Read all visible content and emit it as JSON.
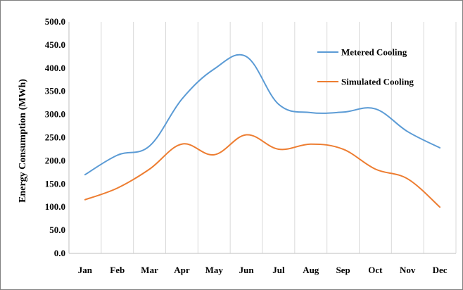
{
  "chart_data": {
    "type": "line",
    "title": "",
    "xlabel": "",
    "ylabel": "Energy Consumption  (MWh)",
    "categories": [
      "Jan",
      "Feb",
      "Mar",
      "Apr",
      "May",
      "Jun",
      "Jul",
      "Aug",
      "Sep",
      "Oct",
      "Nov",
      "Dec"
    ],
    "ylim": [
      0,
      500
    ],
    "yticks": [
      "0.0",
      "50.0",
      "100.0",
      "150.0",
      "200.0",
      "250.0",
      "300.0",
      "350.0",
      "400.0",
      "450.0",
      "500.0"
    ],
    "grid": "vertical",
    "legend_position": "top-right",
    "series": [
      {
        "name": "Metered Cooling",
        "color": "#5b9bd5",
        "values": [
          170,
          212,
          232,
          333,
          398,
          425,
          322,
          304,
          305,
          312,
          263,
          228
        ]
      },
      {
        "name": "Simulated Cooling",
        "color": "#ed7d31",
        "values": [
          116,
          141,
          182,
          236,
          213,
          256,
          225,
          236,
          225,
          182,
          161,
          100
        ]
      }
    ]
  }
}
